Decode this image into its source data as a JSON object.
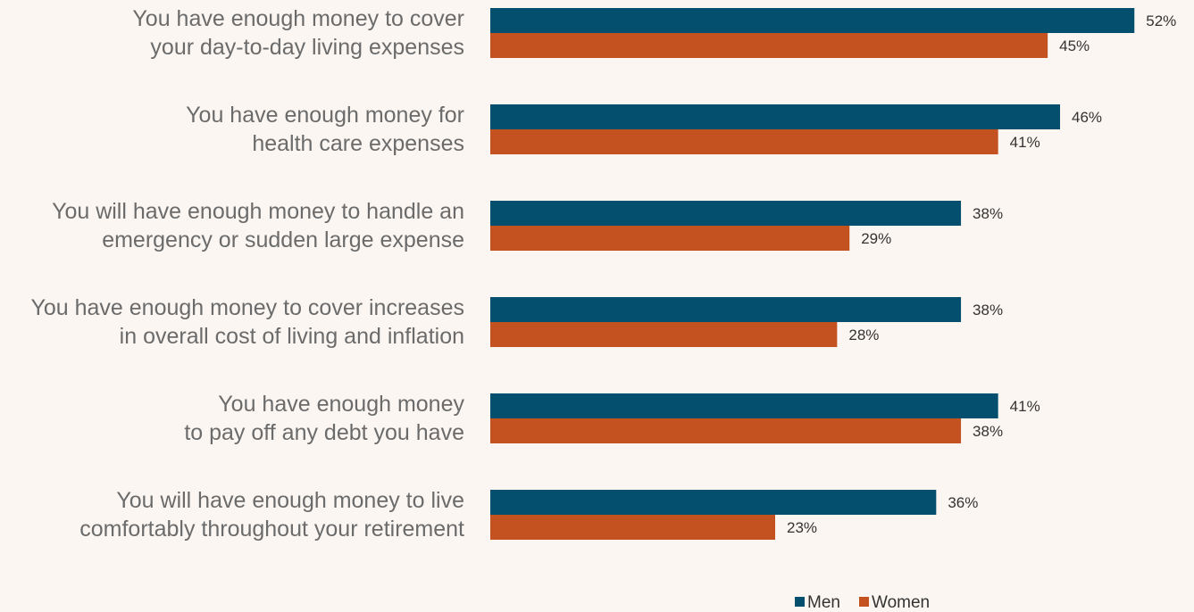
{
  "chart_data": {
    "type": "bar",
    "orientation": "horizontal",
    "categories": [
      [
        "You have enough money to cover",
        "your day-to-day living expenses"
      ],
      [
        "You have enough money for",
        "health care expenses"
      ],
      [
        "You will have enough money to handle an",
        "emergency or sudden large expense"
      ],
      [
        "You have enough money to cover increases",
        "in overall cost of living and inflation"
      ],
      [
        "You have enough money",
        "to pay off any debt you have"
      ],
      [
        "You will have enough money to live",
        "comfortably throughout your retirement"
      ]
    ],
    "series": [
      {
        "name": "Men",
        "color": "#044f6e",
        "values": [
          52,
          46,
          38,
          38,
          41,
          36
        ],
        "labels": [
          "52%",
          "46%",
          "38%",
          "38%",
          "41%",
          "36%"
        ]
      },
      {
        "name": "Women",
        "color": "#c35220",
        "values": [
          45,
          41,
          29,
          28,
          38,
          23
        ],
        "labels": [
          "45%",
          "41%",
          "29%",
          "28%",
          "38%",
          "23%"
        ]
      }
    ],
    "value_unit": "%",
    "xlim": [
      0,
      60
    ],
    "grid": false,
    "legend_position": "bottom-center",
    "title": "",
    "xlabel": "",
    "ylabel": ""
  }
}
